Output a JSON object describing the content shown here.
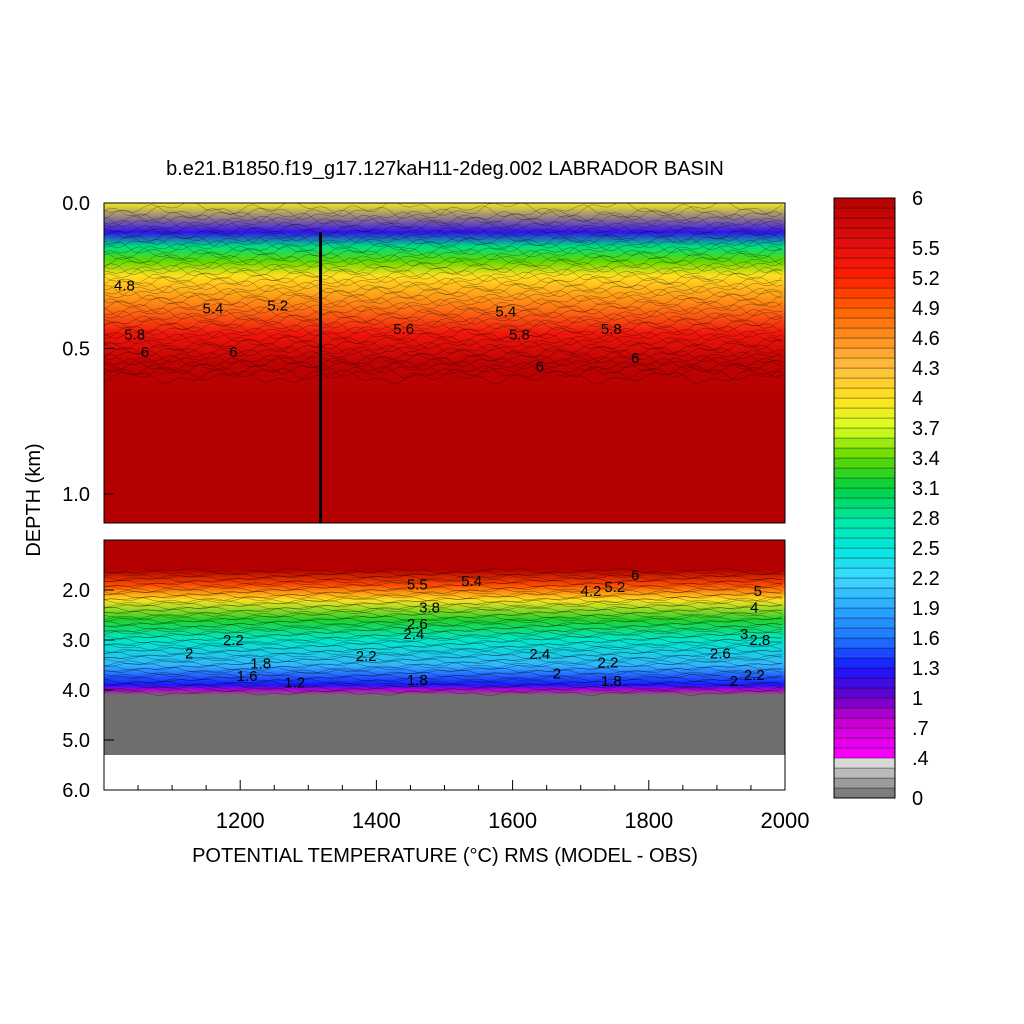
{
  "chart_data": {
    "type": "heatmap",
    "title": "b.e21.B1850.f19_g17.127kaH11-2deg.002 LABRADOR BASIN",
    "xlabel": "POTENTIAL TEMPERATURE (°C) RMS (MODEL - OBS)",
    "ylabel": "DEPTH (km)",
    "xlim": [
      1000,
      2000
    ],
    "x_ticks": [
      "1200",
      "1400",
      "1600",
      "1800",
      "2000"
    ],
    "upper_panel": {
      "ylim": [
        0.0,
        1.1
      ],
      "y_ticks": [
        "0.0",
        "0.5",
        "1.0"
      ],
      "y_tick_values": [
        0.0,
        0.5,
        1.0
      ]
    },
    "lower_panel": {
      "ylim": [
        1.0,
        6.0
      ],
      "y_ticks": [
        "2.0",
        "3.0",
        "4.0",
        "5.0",
        "6.0"
      ],
      "y_tick_values": [
        2.0,
        3.0,
        4.0,
        5.0,
        6.0
      ]
    },
    "colorbar": {
      "min": 0,
      "max": 6,
      "labels": [
        "6",
        "5.5",
        "5.2",
        "4.9",
        "4.6",
        "4.3",
        "4",
        "3.7",
        "3.4",
        "3.1",
        "2.8",
        "2.5",
        "2.2",
        "1.9",
        "1.6",
        "1.3",
        "1",
        ".7",
        ".4",
        "0"
      ],
      "label_values": [
        6,
        5.5,
        5.2,
        4.9,
        4.6,
        4.3,
        4.0,
        3.7,
        3.4,
        3.1,
        2.8,
        2.5,
        2.2,
        1.9,
        1.6,
        1.3,
        1.0,
        0.7,
        0.4,
        0
      ],
      "color_stops": [
        {
          "v": 0.0,
          "color": "#6e6e6e"
        },
        {
          "v": 0.35,
          "color": "#d8d8d8"
        },
        {
          "v": 0.4,
          "color": "#ff00ff"
        },
        {
          "v": 0.8,
          "color": "#c000d0"
        },
        {
          "v": 1.0,
          "color": "#6a00c8"
        },
        {
          "v": 1.3,
          "color": "#1818ff"
        },
        {
          "v": 1.6,
          "color": "#1e78ff"
        },
        {
          "v": 1.9,
          "color": "#2aa8ff"
        },
        {
          "v": 2.2,
          "color": "#3ed8ff"
        },
        {
          "v": 2.5,
          "color": "#00e8e0"
        },
        {
          "v": 2.8,
          "color": "#00e8a0"
        },
        {
          "v": 3.1,
          "color": "#00d040"
        },
        {
          "v": 3.4,
          "color": "#60d800"
        },
        {
          "v": 3.7,
          "color": "#d8ff20"
        },
        {
          "v": 4.0,
          "color": "#ffe020"
        },
        {
          "v": 4.3,
          "color": "#ffc040"
        },
        {
          "v": 4.6,
          "color": "#ff9020"
        },
        {
          "v": 4.9,
          "color": "#ff6000"
        },
        {
          "v": 5.2,
          "color": "#ff2000"
        },
        {
          "v": 5.5,
          "color": "#e81010"
        },
        {
          "v": 6.0,
          "color": "#b40000"
        }
      ]
    },
    "vertical_profile": [
      {
        "depth": 0.0,
        "value": 3.9
      },
      {
        "depth": 0.1,
        "value": 1.2
      },
      {
        "depth": 0.15,
        "value": 2.9
      },
      {
        "depth": 0.2,
        "value": 3.4
      },
      {
        "depth": 0.25,
        "value": 4.0
      },
      {
        "depth": 0.35,
        "value": 4.7
      },
      {
        "depth": 0.45,
        "value": 5.4
      },
      {
        "depth": 0.55,
        "value": 5.9
      },
      {
        "depth": 0.7,
        "value": 6.0
      },
      {
        "depth": 1.0,
        "value": 6.0
      },
      {
        "depth": 1.6,
        "value": 6.0
      },
      {
        "depth": 1.9,
        "value": 5.0
      },
      {
        "depth": 2.2,
        "value": 4.0
      },
      {
        "depth": 2.6,
        "value": 3.2
      },
      {
        "depth": 3.0,
        "value": 2.6
      },
      {
        "depth": 3.5,
        "value": 2.0
      },
      {
        "depth": 3.9,
        "value": 1.3
      },
      {
        "depth": 4.0,
        "value": 0.8
      },
      {
        "depth": 4.1,
        "value": 0.0
      },
      {
        "depth": 5.3,
        "value": 0.0
      }
    ],
    "missing_below_depth": 5.3,
    "anomaly_line_x": 1318,
    "contour_labels": [
      {
        "text": "5.8",
        "x": 1045,
        "depth": 0.47
      },
      {
        "text": "6",
        "x": 1060,
        "depth": 0.53
      },
      {
        "text": "4.8",
        "x": 1030,
        "depth": 0.3
      },
      {
        "text": "5.4",
        "x": 1160,
        "depth": 0.38
      },
      {
        "text": "6",
        "x": 1190,
        "depth": 0.53
      },
      {
        "text": "5.2",
        "x": 1255,
        "depth": 0.37
      },
      {
        "text": "5.6",
        "x": 1440,
        "depth": 0.45
      },
      {
        "text": "5.4",
        "x": 1590,
        "depth": 0.39
      },
      {
        "text": "5.8",
        "x": 1610,
        "depth": 0.47
      },
      {
        "text": "6",
        "x": 1640,
        "depth": 0.58
      },
      {
        "text": "5.8",
        "x": 1745,
        "depth": 0.45
      },
      {
        "text": "6",
        "x": 1780,
        "depth": 0.55
      },
      {
        "text": "5.5",
        "x": 1460,
        "depth": 1.99
      },
      {
        "text": "5.4",
        "x": 1540,
        "depth": 1.92
      },
      {
        "text": "4.2",
        "x": 1715,
        "depth": 2.12
      },
      {
        "text": "5.2",
        "x": 1750,
        "depth": 2.04
      },
      {
        "text": "6",
        "x": 1780,
        "depth": 1.8
      },
      {
        "text": "5",
        "x": 1960,
        "depth": 2.12
      },
      {
        "text": "4",
        "x": 1955,
        "depth": 2.45
      },
      {
        "text": "3.8",
        "x": 1478,
        "depth": 2.45
      },
      {
        "text": "2.6",
        "x": 1460,
        "depth": 2.78
      },
      {
        "text": "2.4",
        "x": 1455,
        "depth": 2.98
      },
      {
        "text": "3",
        "x": 1940,
        "depth": 2.98
      },
      {
        "text": "2.8",
        "x": 1963,
        "depth": 3.1
      },
      {
        "text": "2.4",
        "x": 1640,
        "depth": 3.38
      },
      {
        "text": "2.2",
        "x": 1740,
        "depth": 3.55
      },
      {
        "text": "2.6",
        "x": 1905,
        "depth": 3.37
      },
      {
        "text": "2.2",
        "x": 1955,
        "depth": 3.8
      },
      {
        "text": "2",
        "x": 1925,
        "depth": 3.92
      },
      {
        "text": "2",
        "x": 1125,
        "depth": 3.37
      },
      {
        "text": "2.2",
        "x": 1190,
        "depth": 3.1
      },
      {
        "text": "1.8",
        "x": 1230,
        "depth": 3.57
      },
      {
        "text": "1.6",
        "x": 1210,
        "depth": 3.82
      },
      {
        "text": "2.2",
        "x": 1385,
        "depth": 3.42
      },
      {
        "text": "1.8",
        "x": 1460,
        "depth": 3.9
      },
      {
        "text": "2",
        "x": 1665,
        "depth": 3.77
      },
      {
        "text": "1.8",
        "x": 1745,
        "depth": 3.92
      },
      {
        "text": "1.2",
        "x": 1280,
        "depth": 3.95
      }
    ]
  }
}
